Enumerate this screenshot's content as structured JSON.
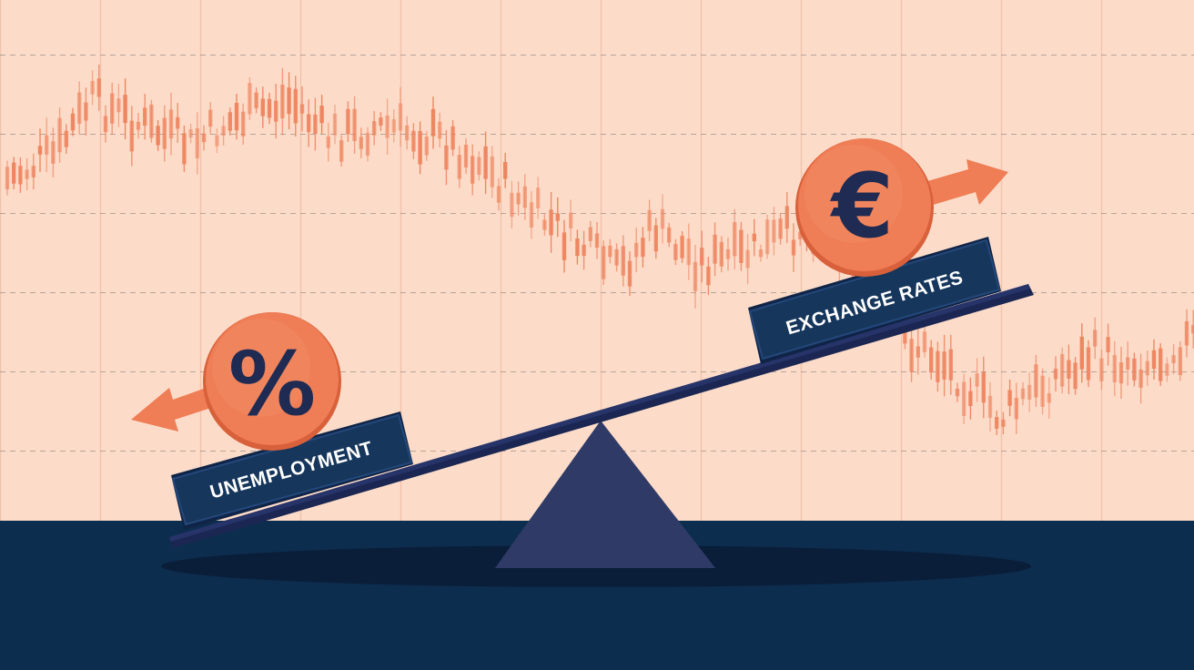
{
  "colors": {
    "background": "#fcdcc9",
    "grid": "#f1c3ac",
    "grid_dash": "#8a7f7c",
    "candle": "#ee8560",
    "floor": "#0d2d4e",
    "beam": "#202f5c",
    "fulcrum": "#2f3b66",
    "label_box": "#16365c",
    "coin": "#ef7d55",
    "arrow": "#ef7d55",
    "symbol": "#1f2b52",
    "label_text": "#ffffff"
  },
  "left_weight": {
    "label": "UNEMPLOYMENT",
    "symbol": "%",
    "arrow_icon": "arrow-left-down-icon",
    "direction": "down"
  },
  "right_weight": {
    "label": "EXCHANGE RATES",
    "symbol": "€",
    "arrow_icon": "arrow-right-up-icon",
    "direction": "up"
  }
}
